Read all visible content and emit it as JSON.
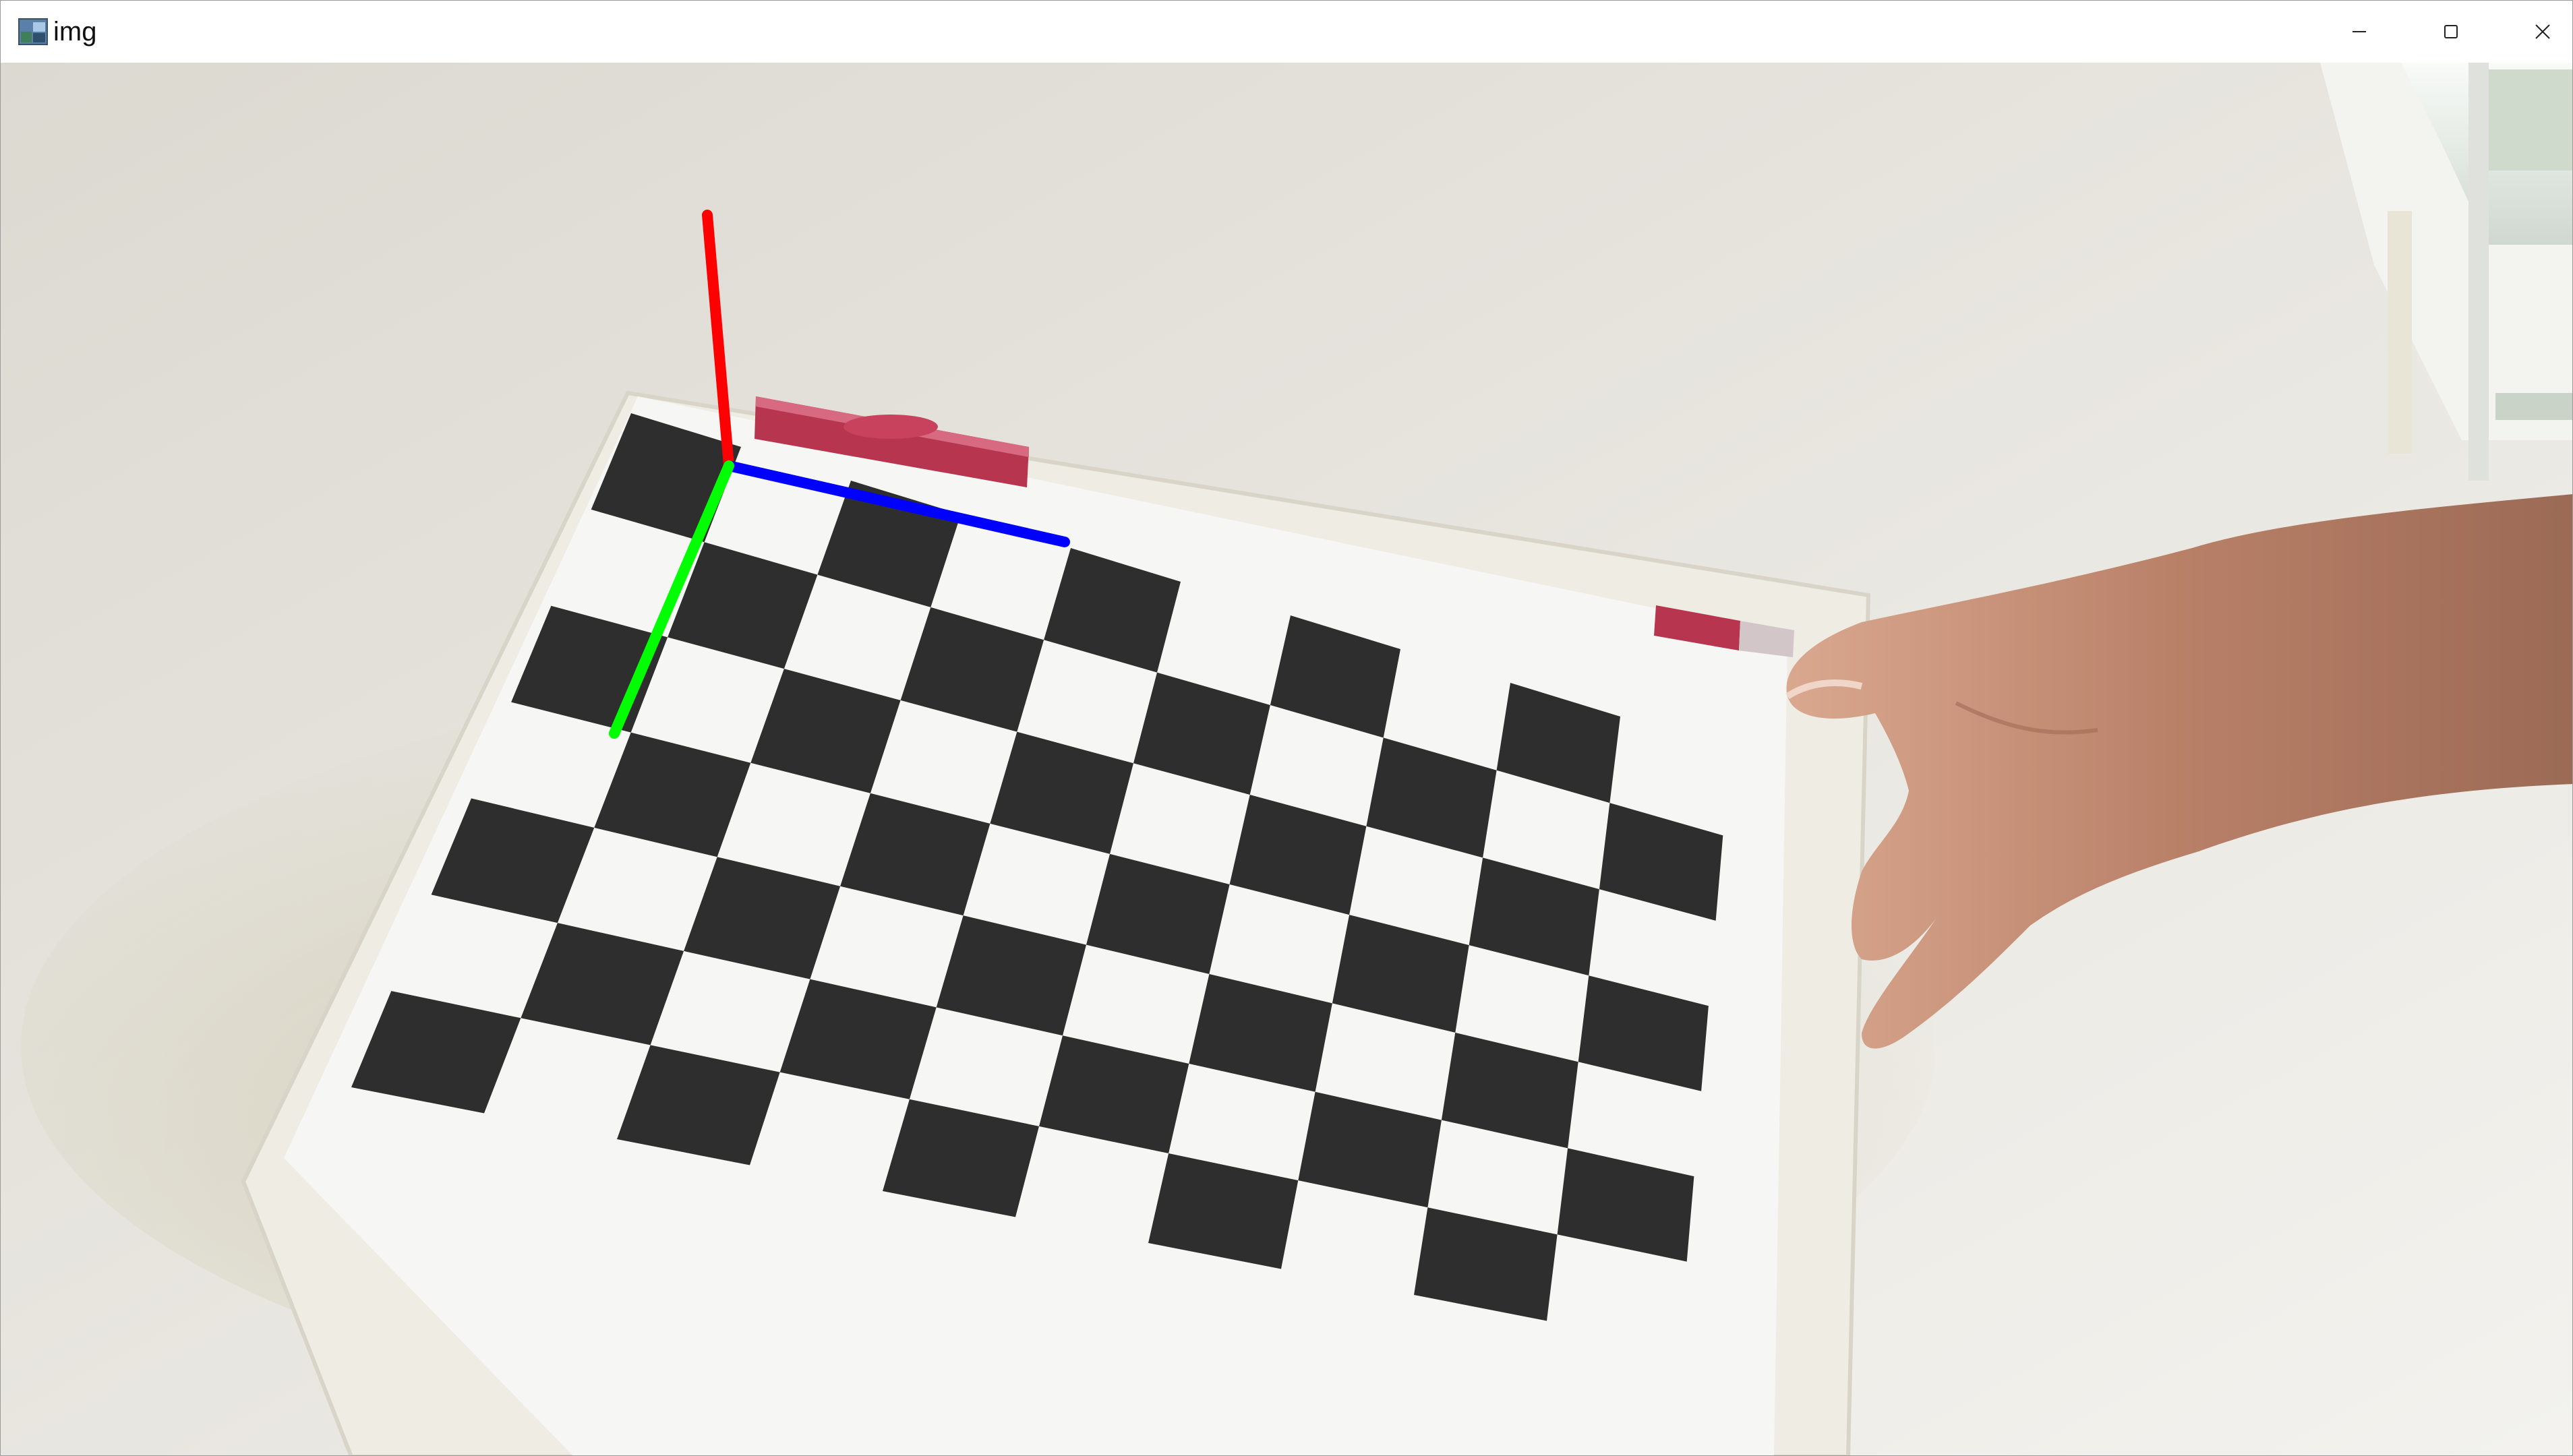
{
  "window": {
    "title": "img",
    "app_icon": "opencv-window-icon",
    "controls": [
      "minimize-icon",
      "maximize-icon",
      "close-icon"
    ]
  },
  "colors": {
    "axis_x": "#ff0000",
    "axis_y": "#00ff00",
    "axis_z": "#0000ff",
    "background_wall": "#e6e3dc",
    "checker_dark": "#2e2e2e",
    "checker_light": "#f7f7f7",
    "magnet_red": "#c03050"
  },
  "content": {
    "image_kind": "camera-frame",
    "chessboard_pattern": "checkerboard-calibration-target",
    "overlay": "pose-axes"
  }
}
